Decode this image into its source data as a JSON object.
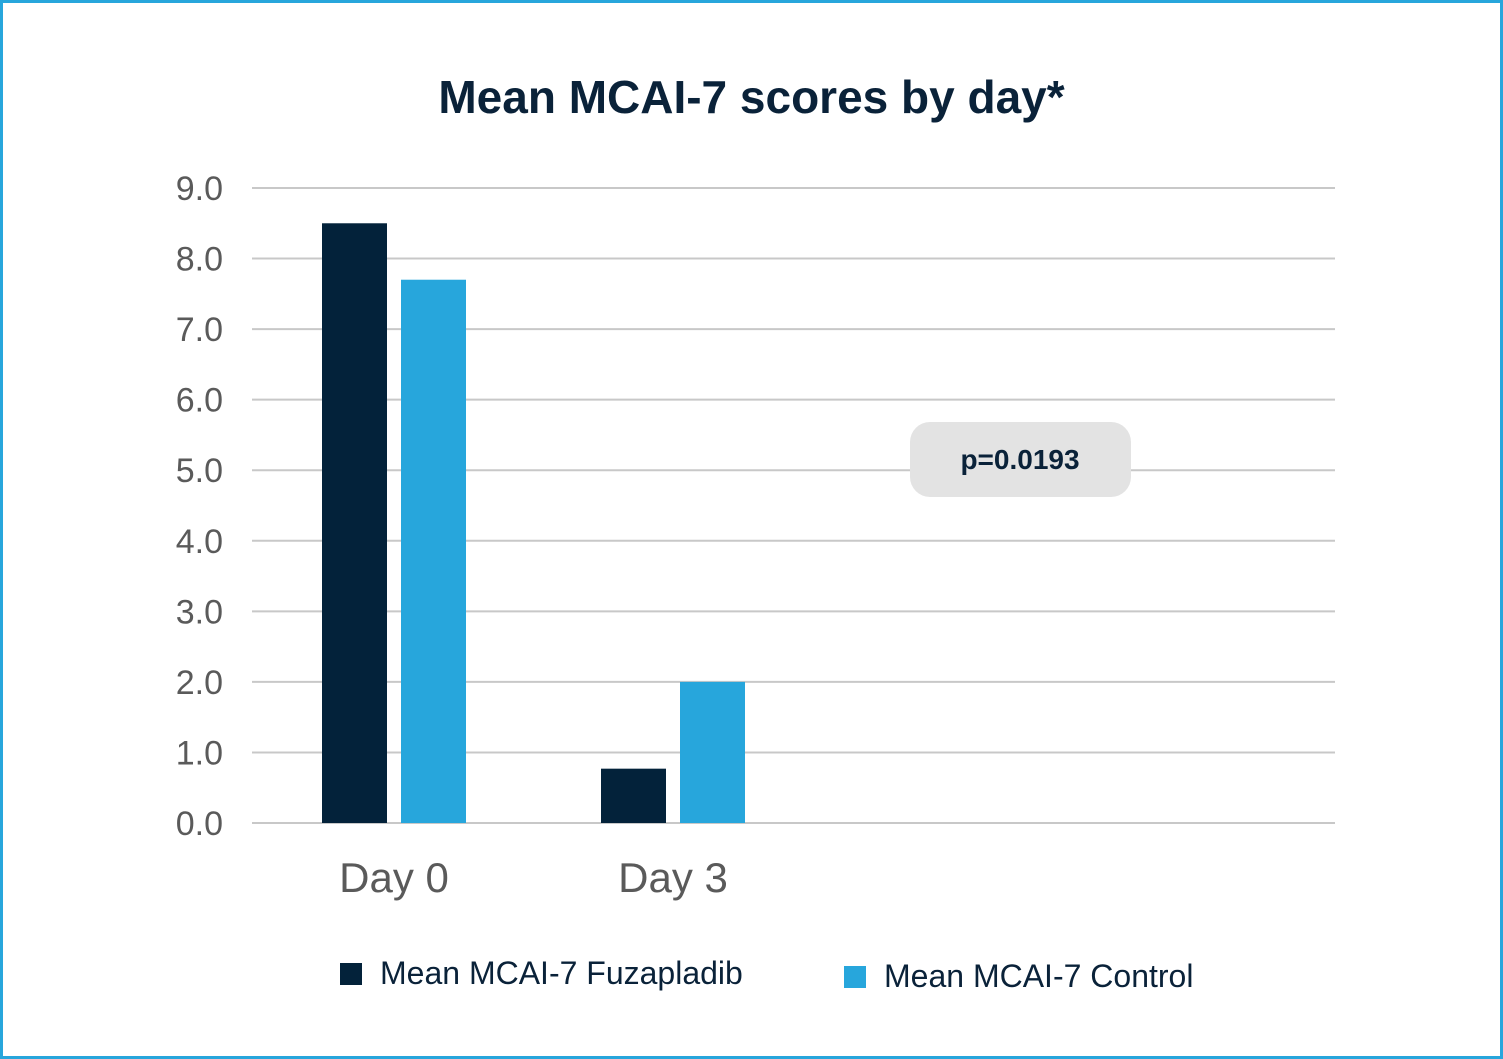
{
  "chart_data": {
    "type": "bar",
    "title": "Mean MCAI-7 scores by day*",
    "categories": [
      "Day 0",
      "Day 3"
    ],
    "series": [
      {
        "name": "Mean MCAI-7 Fuzapladib",
        "values": [
          8.5,
          0.77
        ],
        "color": "#03223a"
      },
      {
        "name": "Mean MCAI-7 Control",
        "values": [
          7.7,
          2.0
        ],
        "color": "#27a6dc"
      }
    ],
    "ylim": [
      0,
      9
    ],
    "yticks": [
      "0.0",
      "1.0",
      "2.0",
      "3.0",
      "4.0",
      "5.0",
      "6.0",
      "7.0",
      "8.0",
      "9.0"
    ],
    "grid": true,
    "legend": "bottom",
    "annotation": "p=0.0193"
  }
}
